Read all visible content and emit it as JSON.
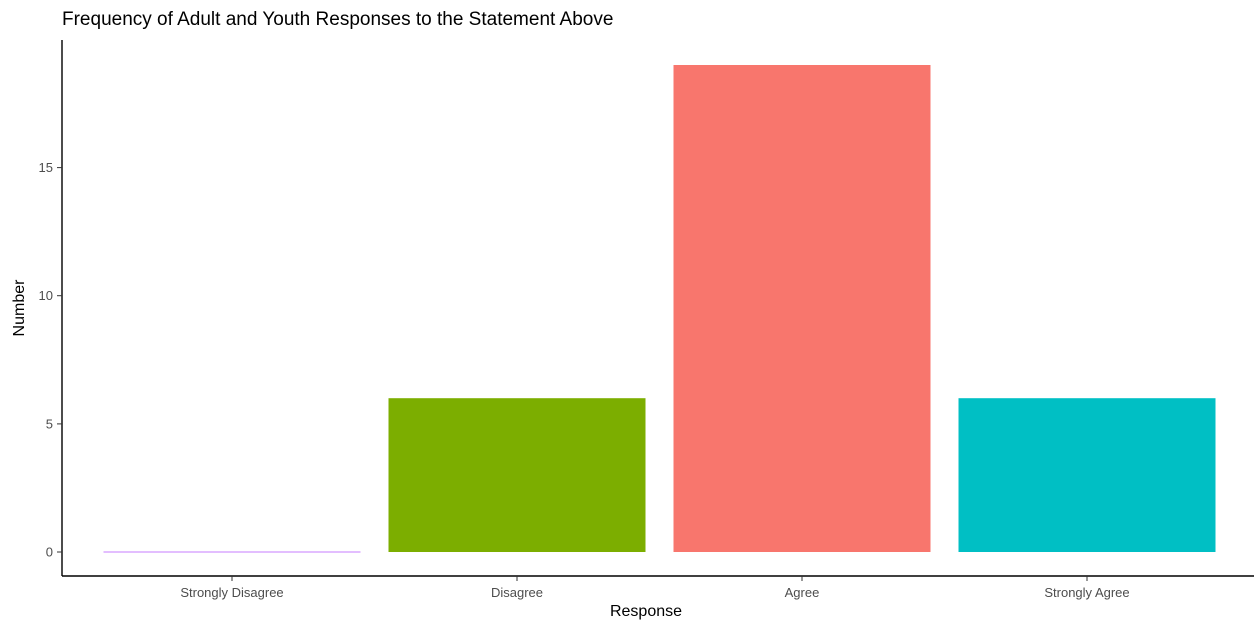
{
  "chart_data": {
    "type": "bar",
    "title": "Frequency of Adult and Youth Responses to the Statement Above",
    "xlabel": "Response",
    "ylabel": "Number",
    "categories": [
      "Strongly Disagree",
      "Disagree",
      "Agree",
      "Strongly Agree"
    ],
    "values": [
      0,
      6,
      19,
      6
    ],
    "colors": [
      "#C77CFF",
      "#7CAE00",
      "#F8766D",
      "#00BFC4"
    ],
    "ylim": [
      0,
      19.95
    ],
    "yticks": [
      0,
      5,
      10,
      15
    ],
    "ytick_labels": [
      "0",
      "5",
      "10",
      "15"
    ],
    "grid": false,
    "legend": "none"
  }
}
